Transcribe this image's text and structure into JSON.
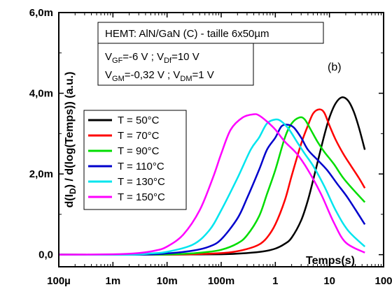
{
  "chart_data": {
    "type": "line",
    "title_box": "HEMT: AlN/GaN (C) - taille 6x50µm",
    "conditions": [
      {
        "p1": "V",
        "s1": "GF",
        "m1": "=-6 V ; V",
        "s2": "Df",
        "m2": "=10 V"
      },
      {
        "p1": "V",
        "s1": "GM",
        "m1": "=-0,32 V ; V",
        "s2": "DM",
        "m2": "=1 V"
      }
    ],
    "panel_label": "(b)",
    "xlabel": "Temps(s)",
    "ylabel": {
      "pre": "d(I",
      "sub": "D",
      "post": ") / d(log(Temps)) (a.u.)"
    },
    "x_scale": "log",
    "xlim": [
      0.0001,
      100
    ],
    "ylim": [
      -0.0003,
      0.006
    ],
    "x_ticks": [
      {
        "v": 0.0001,
        "label": "100µ"
      },
      {
        "v": 0.001,
        "label": "1m"
      },
      {
        "v": 0.01,
        "label": "10m"
      },
      {
        "v": 0.1,
        "label": "100m"
      },
      {
        "v": 1,
        "label": "1"
      },
      {
        "v": 10,
        "label": "10"
      },
      {
        "v": 100,
        "label": "100"
      }
    ],
    "y_ticks": [
      {
        "v": 0,
        "label": "0,0"
      },
      {
        "v": 0.002,
        "label": "2,0m"
      },
      {
        "v": 0.004,
        "label": "4,0m"
      },
      {
        "v": 0.006,
        "label": "6,0m"
      }
    ],
    "legend_position": "left",
    "series": [
      {
        "name": "T = 50°C",
        "color": "#000000",
        "x": [
          0.0001,
          0.01,
          0.1,
          0.3,
          0.6,
          1,
          1.5,
          2,
          3,
          4,
          5,
          6,
          8,
          10,
          13,
          17,
          22,
          28,
          35,
          45
        ],
        "y": [
          0.0,
          0.0,
          1e-05,
          4e-05,
          8e-05,
          0.00015,
          0.00027,
          0.00042,
          0.00085,
          0.00135,
          0.00185,
          0.00228,
          0.00295,
          0.0034,
          0.00375,
          0.0039,
          0.00382,
          0.00355,
          0.00315,
          0.0026
        ]
      },
      {
        "name": "T = 70°C",
        "color": "#ff0000",
        "x": [
          0.0001,
          0.01,
          0.05,
          0.15,
          0.3,
          0.5,
          0.7,
          1,
          1.5,
          2,
          3,
          4,
          5,
          6.5,
          8,
          10,
          13,
          18,
          25,
          35,
          45
        ],
        "y": [
          0.0,
          0.0,
          2e-05,
          6e-05,
          0.00014,
          0.00025,
          0.00042,
          0.00075,
          0.00135,
          0.00195,
          0.00275,
          0.0032,
          0.0035,
          0.0036,
          0.00352,
          0.0032,
          0.00285,
          0.0025,
          0.0022,
          0.0019,
          0.00165
        ]
      },
      {
        "name": "T = 90°C",
        "color": "#00dd00",
        "x": [
          0.0001,
          0.005,
          0.02,
          0.05,
          0.1,
          0.2,
          0.3,
          0.5,
          0.7,
          1,
          1.5,
          2,
          2.8,
          3.5,
          4.5,
          6,
          8,
          12,
          18,
          28,
          45
        ],
        "y": [
          0.0,
          0.0,
          2e-05,
          6e-05,
          0.00012,
          0.00028,
          0.00048,
          0.00095,
          0.0015,
          0.0021,
          0.0029,
          0.00325,
          0.0034,
          0.00335,
          0.0031,
          0.0028,
          0.00255,
          0.00225,
          0.0019,
          0.0016,
          0.0013
        ]
      },
      {
        "name": "T = 110°C",
        "color": "#0000cc",
        "x": [
          0.0001,
          0.003,
          0.01,
          0.03,
          0.06,
          0.1,
          0.2,
          0.3,
          0.5,
          0.7,
          1,
          1.3,
          1.7,
          2.2,
          3,
          4,
          6,
          9,
          14,
          22,
          45
        ],
        "y": [
          0.0,
          0.0,
          3e-05,
          0.0001,
          0.0002,
          0.00038,
          0.0009,
          0.0014,
          0.0021,
          0.0026,
          0.0029,
          0.00318,
          0.00322,
          0.00315,
          0.0029,
          0.0026,
          0.00235,
          0.0021,
          0.00175,
          0.0014,
          0.00075
        ]
      },
      {
        "name": "T = 130°C",
        "color": "#00e5ee",
        "x": [
          0.0001,
          0.002,
          0.005,
          0.01,
          0.03,
          0.06,
          0.1,
          0.2,
          0.35,
          0.5,
          0.7,
          1,
          1.3,
          1.8,
          2.5,
          3.5,
          5,
          8,
          13,
          22,
          45
        ],
        "y": [
          0.0,
          0.0,
          3e-05,
          7e-05,
          0.00025,
          0.0006,
          0.0011,
          0.0019,
          0.0026,
          0.0029,
          0.00325,
          0.00335,
          0.0033,
          0.0031,
          0.0028,
          0.0025,
          0.0022,
          0.0017,
          0.0011,
          0.0006,
          0.0002
        ]
      },
      {
        "name": "T = 150°C",
        "color": "#ff00ff",
        "x": [
          0.0001,
          0.001,
          0.003,
          0.006,
          0.01,
          0.02,
          0.04,
          0.07,
          0.1,
          0.15,
          0.25,
          0.4,
          0.5,
          0.7,
          1,
          1.5,
          2.5,
          4,
          7,
          12,
          20,
          45
        ],
        "y": [
          0.0,
          1e-05,
          4e-05,
          0.0001,
          0.0002,
          0.0005,
          0.0011,
          0.0019,
          0.0025,
          0.0031,
          0.0034,
          0.00348,
          0.00345,
          0.0033,
          0.0031,
          0.0028,
          0.0025,
          0.0021,
          0.0015,
          0.0008,
          0.0003,
          5e-05
        ]
      }
    ]
  }
}
